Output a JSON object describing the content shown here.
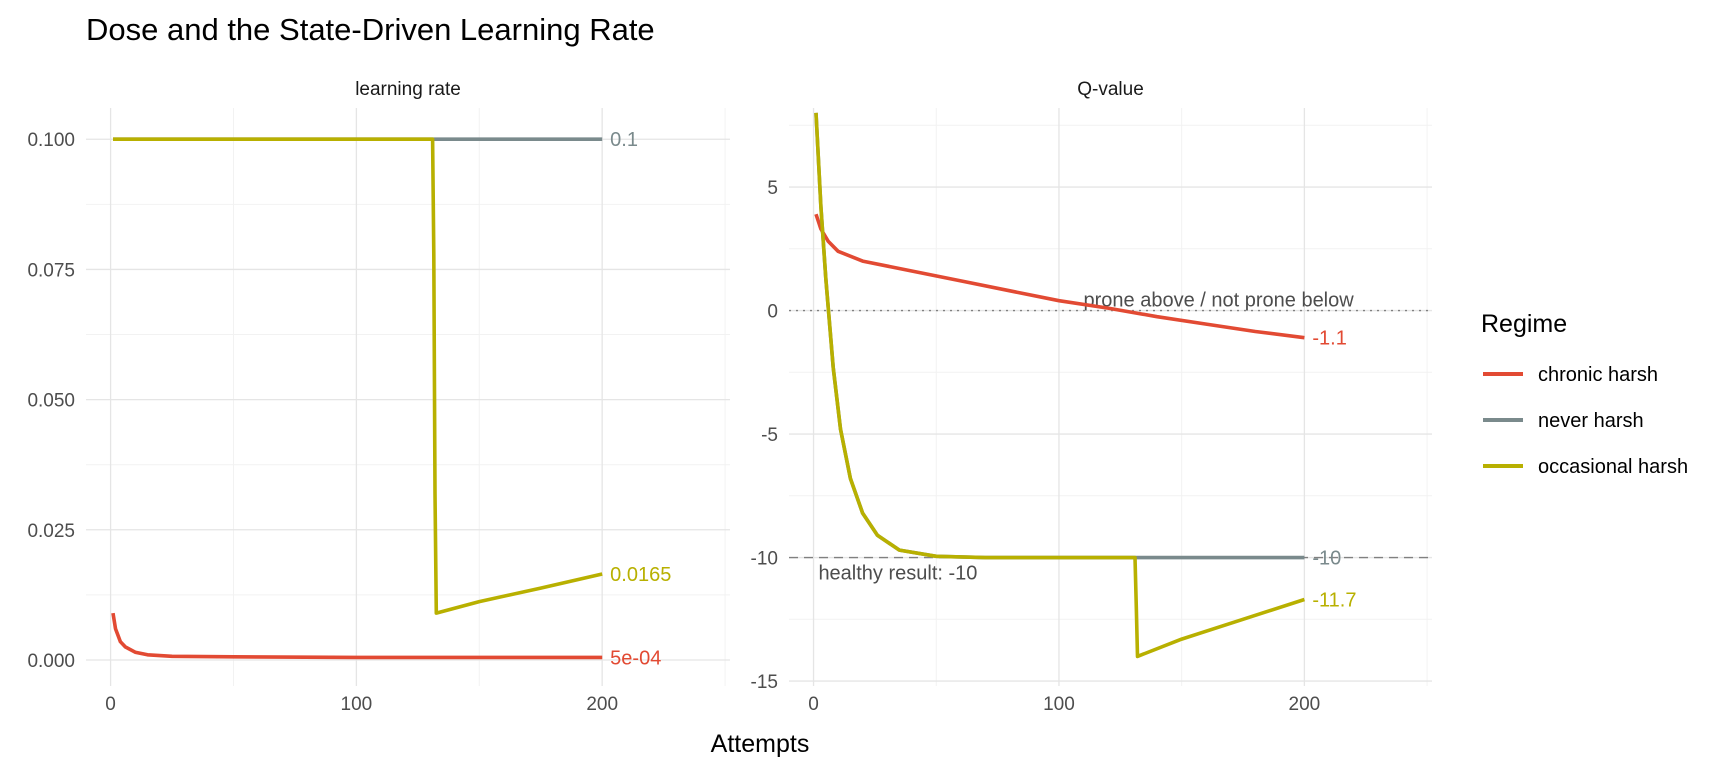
{
  "title": "Dose and the State-Driven Learning Rate",
  "x_axis_title": "Attempts",
  "colors": {
    "chronic harsh": "#E24A33",
    "never harsh": "#7A8A8C",
    "occasional harsh": "#B8B000"
  },
  "legend": {
    "title": "Regime",
    "items": [
      "chronic harsh",
      "never harsh",
      "occasional harsh"
    ]
  },
  "chart_data": [
    {
      "type": "line",
      "panel": "learning rate",
      "xlabel": "Attempts",
      "ylabel": "",
      "xlim": [
        -10,
        252
      ],
      "ylim": [
        -0.005,
        0.106
      ],
      "x_ticks": [
        0,
        100,
        200
      ],
      "y_ticks": [
        0.0,
        0.025,
        0.05,
        0.075,
        0.1
      ],
      "y_tick_labels": [
        "0.000",
        "0.025",
        "0.050",
        "0.075",
        "0.100"
      ],
      "grid": true,
      "series": [
        {
          "name": "chronic harsh",
          "end_label": "5e-04",
          "points": [
            [
              1,
              0.009
            ],
            [
              2,
              0.006
            ],
            [
              4,
              0.0035
            ],
            [
              6,
              0.0025
            ],
            [
              10,
              0.0015
            ],
            [
              15,
              0.001
            ],
            [
              25,
              0.0007
            ],
            [
              50,
              0.0006
            ],
            [
              100,
              0.0005
            ],
            [
              200,
              0.0005
            ]
          ]
        },
        {
          "name": "never harsh",
          "end_label": "0.1",
          "points": [
            [
              1,
              0.1
            ],
            [
              200,
              0.1
            ]
          ]
        },
        {
          "name": "occasional harsh",
          "end_label": "0.0165",
          "points": [
            [
              1,
              0.1
            ],
            [
              131,
              0.1
            ],
            [
              131.5,
              0.078
            ],
            [
              132,
              0.032
            ],
            [
              132.5,
              0.009
            ],
            [
              150,
              0.0112
            ],
            [
              175,
              0.0138
            ],
            [
              200,
              0.0165
            ]
          ]
        }
      ]
    },
    {
      "type": "line",
      "panel": "Q-value",
      "xlabel": "Attempts",
      "ylabel": "",
      "xlim": [
        -10,
        252
      ],
      "ylim": [
        -15.2,
        8.2
      ],
      "x_ticks": [
        0,
        100,
        200
      ],
      "y_ticks": [
        -15,
        -10,
        -5,
        0,
        5
      ],
      "y_tick_labels": [
        "-15",
        "-10",
        "-5",
        "0",
        "5"
      ],
      "grid": true,
      "reference_lines": [
        {
          "y": 0,
          "style": "dotted",
          "label": "prone above / not prone below",
          "label_x": 110
        },
        {
          "y": -10,
          "style": "dashed",
          "label": "healthy result: -10",
          "label_x": 2
        }
      ],
      "series": [
        {
          "name": "chronic harsh",
          "end_label": "-1.1",
          "points": [
            [
              1,
              3.9
            ],
            [
              3,
              3.3
            ],
            [
              6,
              2.8
            ],
            [
              10,
              2.4
            ],
            [
              20,
              2.0
            ],
            [
              40,
              1.6
            ],
            [
              60,
              1.2
            ],
            [
              80,
              0.8
            ],
            [
              100,
              0.4
            ],
            [
              120,
              0.1
            ],
            [
              140,
              -0.25
            ],
            [
              160,
              -0.55
            ],
            [
              180,
              -0.85
            ],
            [
              200,
              -1.1
            ]
          ]
        },
        {
          "name": "never harsh",
          "end_label": "-10",
          "points": [
            [
              1,
              8.0
            ],
            [
              3,
              4.2
            ],
            [
              5,
              1.3
            ],
            [
              8,
              -2.3
            ],
            [
              11,
              -4.8
            ],
            [
              15,
              -6.8
            ],
            [
              20,
              -8.2
            ],
            [
              26,
              -9.1
            ],
            [
              35,
              -9.7
            ],
            [
              50,
              -9.95
            ],
            [
              70,
              -10.0
            ],
            [
              200,
              -10.0
            ]
          ]
        },
        {
          "name": "occasional harsh",
          "end_label": "-11.7",
          "points": [
            [
              1,
              8.0
            ],
            [
              3,
              4.2
            ],
            [
              5,
              1.3
            ],
            [
              8,
              -2.3
            ],
            [
              11,
              -4.8
            ],
            [
              15,
              -6.8
            ],
            [
              20,
              -8.2
            ],
            [
              26,
              -9.1
            ],
            [
              35,
              -9.7
            ],
            [
              50,
              -9.95
            ],
            [
              70,
              -10.0
            ],
            [
              131,
              -10.0
            ],
            [
              131.5,
              -12.0
            ],
            [
              132,
              -14.0
            ],
            [
              150,
              -13.3
            ],
            [
              175,
              -12.5
            ],
            [
              200,
              -11.7
            ]
          ]
        }
      ]
    }
  ]
}
